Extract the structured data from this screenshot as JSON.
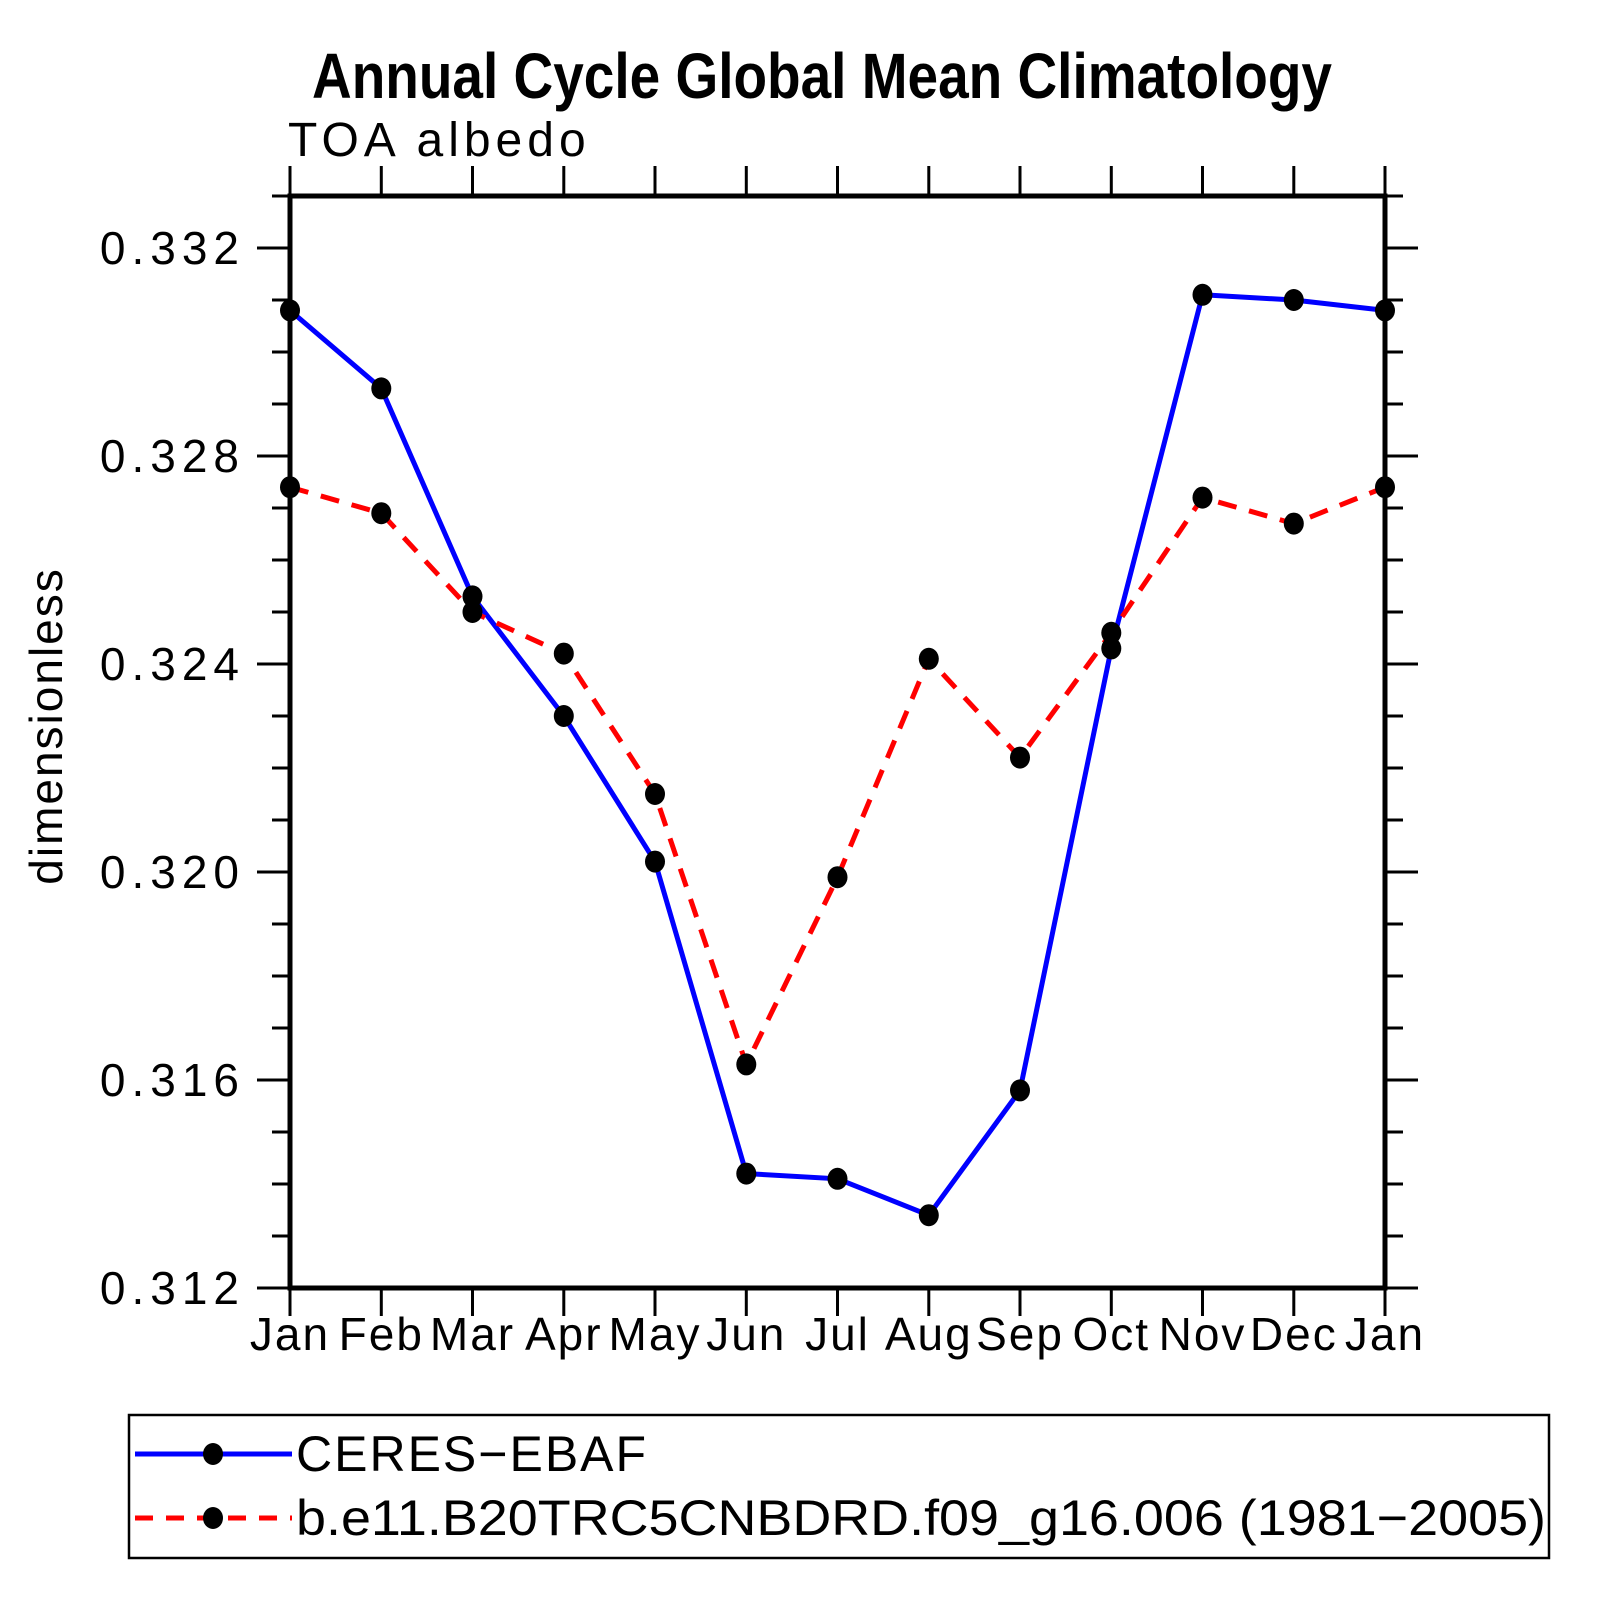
{
  "page": {
    "background": "#ffffff"
  },
  "chart_data": {
    "type": "line",
    "title": "Annual Cycle Global Mean Climatology",
    "subtitle": "TOA albedo",
    "ylabel": "dimensionless",
    "xlabel": "",
    "categories": [
      "Jan",
      "Feb",
      "Mar",
      "Apr",
      "May",
      "Jun",
      "Jul",
      "Aug",
      "Sep",
      "Oct",
      "Nov",
      "Dec",
      "Jan"
    ],
    "ylim": [
      0.312,
      0.333
    ],
    "ytick_major": {
      "values": [
        0.312,
        0.316,
        0.32,
        0.324,
        0.328,
        0.332
      ],
      "labels": [
        "0.312",
        "0.316",
        "0.320",
        "0.324",
        "0.328",
        "0.332"
      ]
    },
    "ytick_minor_step": 0.001,
    "grid": false,
    "legend_position": "bottom-left-box",
    "axis_color": "#000000",
    "marker_color": "#000000",
    "series": [
      {
        "name": "CERES−EBAF",
        "color": "#0000ff",
        "line_style": "solid",
        "marker": "filled-circle",
        "values": [
          0.3308,
          0.3293,
          0.3253,
          0.323,
          0.3202,
          0.3142,
          0.3141,
          0.3134,
          0.3158,
          0.3243,
          0.3311,
          0.331,
          0.3308
        ]
      },
      {
        "name": "b.e11.B20TRC5CNBDRD.f09_g16.006 (1981−2005)",
        "color": "#ff0000",
        "line_style": "dashed",
        "marker": "filled-circle",
        "values": [
          0.3274,
          0.3269,
          0.325,
          0.3242,
          0.3215,
          0.3163,
          0.3199,
          0.3241,
          0.3222,
          0.3246,
          0.3272,
          0.3267,
          0.3274
        ]
      }
    ]
  }
}
